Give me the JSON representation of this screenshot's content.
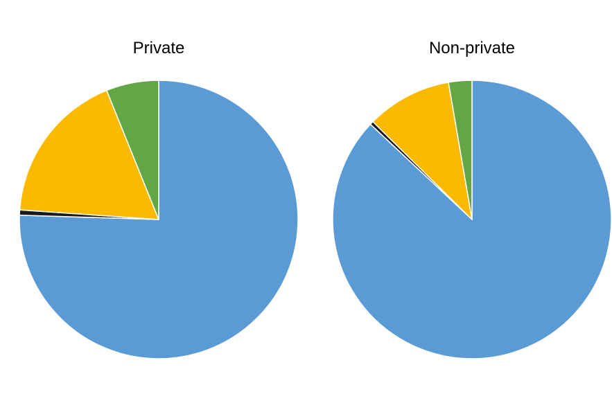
{
  "chart_data": [
    {
      "type": "pie",
      "title": "Private",
      "slices": [
        {
          "value": 75.5,
          "color": "#5b9bd5"
        },
        {
          "value": 0.6,
          "color": "#1a1a1a"
        },
        {
          "value": 17.8,
          "color": "#fbb900"
        },
        {
          "value": 6.1,
          "color": "#63a744"
        }
      ]
    },
    {
      "type": "pie",
      "title": "Non-private",
      "slices": [
        {
          "value": 87.0,
          "color": "#5b9bd5"
        },
        {
          "value": 0.4,
          "color": "#1a1a1a"
        },
        {
          "value": 9.9,
          "color": "#fbb900"
        },
        {
          "value": 2.7,
          "color": "#63a744"
        }
      ]
    }
  ]
}
